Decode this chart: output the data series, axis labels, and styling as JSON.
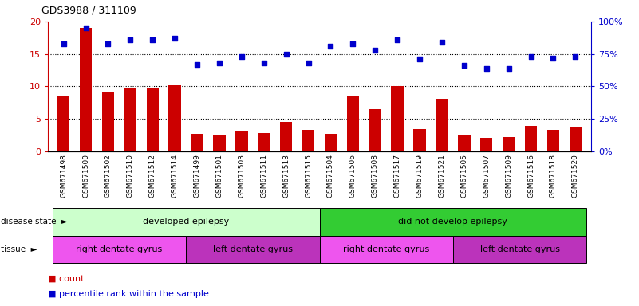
{
  "title": "GDS3988 / 311109",
  "samples": [
    "GSM671498",
    "GSM671500",
    "GSM671502",
    "GSM671510",
    "GSM671512",
    "GSM671514",
    "GSM671499",
    "GSM671501",
    "GSM671503",
    "GSM671511",
    "GSM671513",
    "GSM671515",
    "GSM671504",
    "GSM671506",
    "GSM671508",
    "GSM671517",
    "GSM671519",
    "GSM671521",
    "GSM671505",
    "GSM671507",
    "GSM671509",
    "GSM671516",
    "GSM671518",
    "GSM671520"
  ],
  "counts": [
    8.5,
    19.0,
    9.2,
    9.7,
    9.7,
    10.2,
    2.7,
    2.6,
    3.2,
    2.8,
    4.5,
    3.3,
    2.7,
    8.6,
    6.5,
    10.0,
    3.4,
    8.1,
    2.6,
    2.1,
    2.2,
    3.9,
    3.3,
    3.8
  ],
  "percentile": [
    83,
    95,
    83,
    86,
    86,
    87,
    67,
    68,
    73,
    68,
    75,
    68,
    81,
    83,
    78,
    86,
    71,
    84,
    66,
    64,
    64,
    73,
    72,
    73
  ],
  "ylim_left": [
    0,
    20
  ],
  "ylim_right": [
    0,
    100
  ],
  "yticks_left": [
    0,
    5,
    10,
    15,
    20
  ],
  "yticks_right": [
    0,
    25,
    50,
    75,
    100
  ],
  "bar_color": "#cc0000",
  "dot_color": "#0000cc",
  "disease_groups": [
    {
      "label": "developed epilepsy",
      "start": 0,
      "end": 12,
      "color": "#ccffcc"
    },
    {
      "label": "did not develop epilepsy",
      "start": 12,
      "end": 24,
      "color": "#33cc33"
    }
  ],
  "tissue_groups": [
    {
      "label": "right dentate gyrus",
      "start": 0,
      "end": 6,
      "color": "#ee55ee"
    },
    {
      "label": "left dentate gyrus",
      "start": 6,
      "end": 12,
      "color": "#bb33bb"
    },
    {
      "label": "right dentate gyrus",
      "start": 12,
      "end": 18,
      "color": "#ee55ee"
    },
    {
      "label": "left dentate gyrus",
      "start": 18,
      "end": 24,
      "color": "#bb33bb"
    }
  ],
  "disease_row_label": "disease state",
  "tissue_row_label": "tissue",
  "legend_count_label": "count",
  "legend_pct_label": "percentile rank within the sample"
}
